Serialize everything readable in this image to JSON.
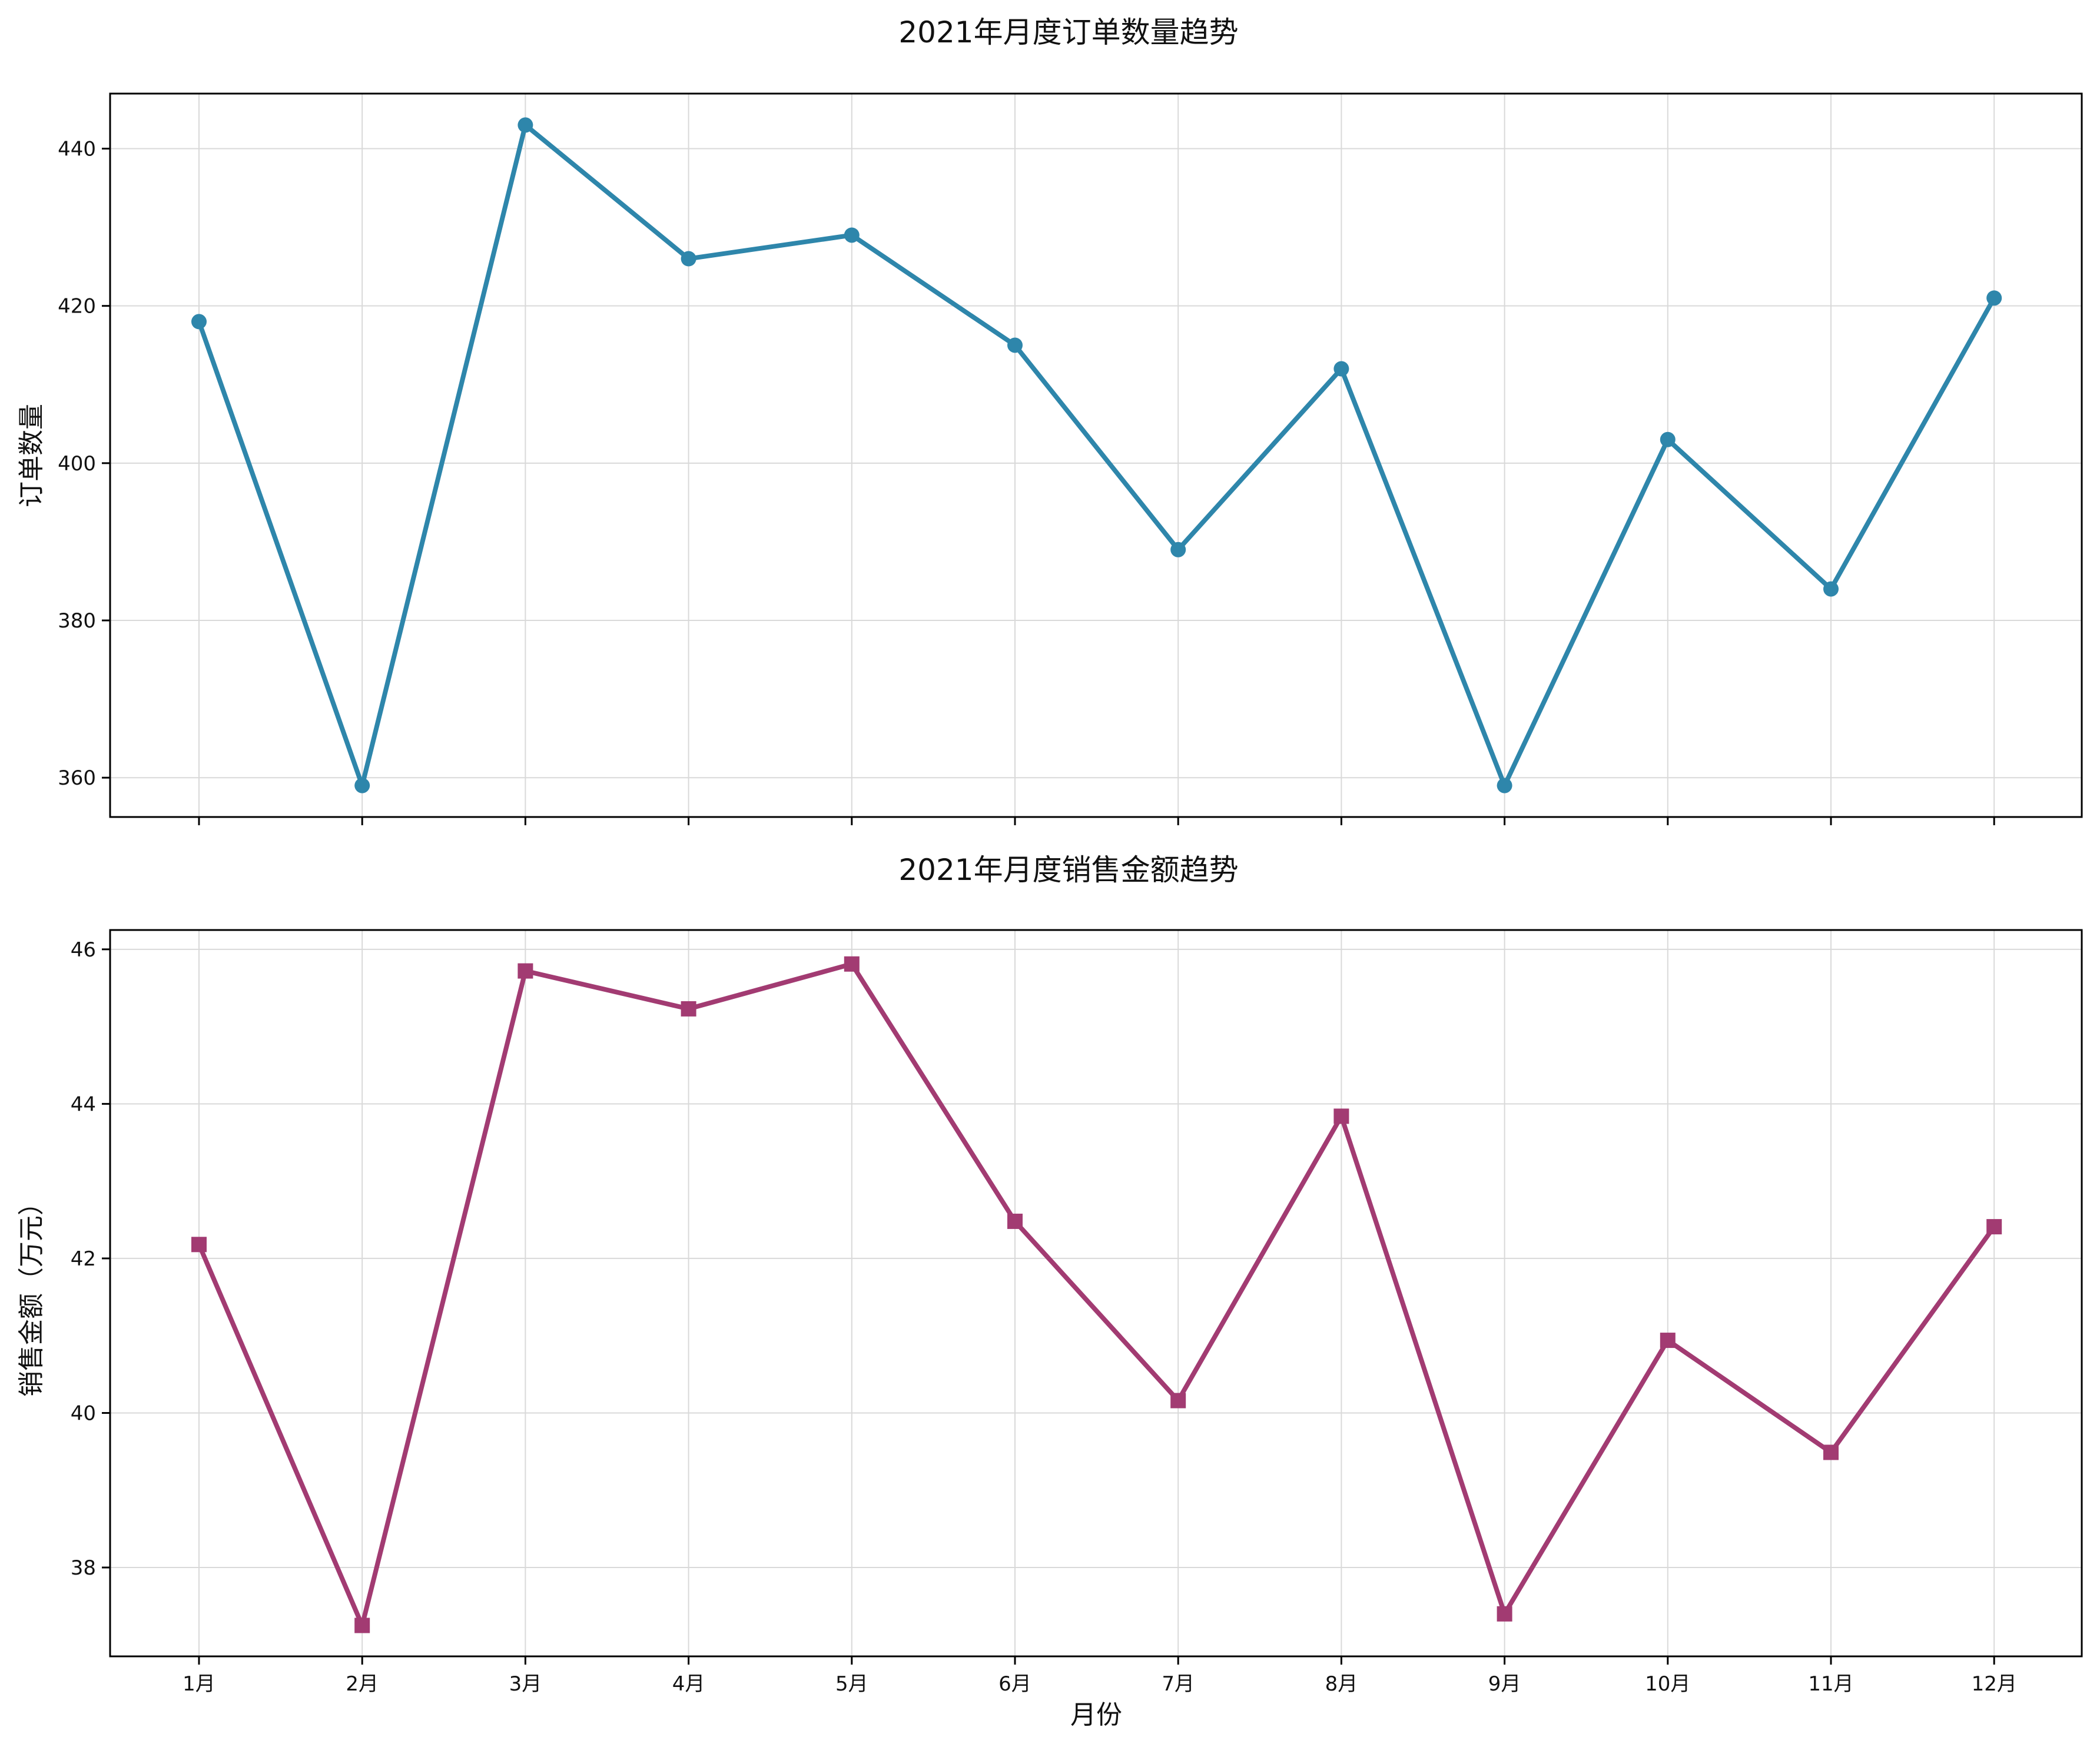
{
  "chart_data": [
    {
      "type": "line",
      "title": "2021年月度订单数量趋势",
      "xlabel": "",
      "ylabel": "订单数量",
      "categories": [
        "1月",
        "2月",
        "3月",
        "4月",
        "5月",
        "6月",
        "7月",
        "8月",
        "9月",
        "10月",
        "11月",
        "12月"
      ],
      "series": [
        {
          "values": [
            418,
            359,
            443,
            426,
            429,
            415,
            389,
            412,
            359,
            403,
            384,
            421
          ],
          "color": "#2E86AB",
          "marker": "circle"
        }
      ],
      "ylim": [
        355,
        447
      ],
      "yticks": [
        360,
        380,
        400,
        420,
        440
      ],
      "show_x_tick_labels": false,
      "grid": true
    },
    {
      "type": "line",
      "title": "2021年月度销售金额趋势",
      "xlabel": "月份",
      "ylabel": "销售金额（万元）",
      "categories": [
        "1月",
        "2月",
        "3月",
        "4月",
        "5月",
        "6月",
        "7月",
        "8月",
        "9月",
        "10月",
        "11月",
        "12月"
      ],
      "series": [
        {
          "values": [
            42.18,
            37.25,
            45.72,
            45.23,
            45.81,
            42.48,
            40.16,
            43.84,
            37.4,
            40.94,
            39.49,
            42.41
          ],
          "color": "#A23B72",
          "marker": "square"
        }
      ],
      "ylim": [
        36.85,
        46.25
      ],
      "yticks": [
        38,
        40,
        42,
        44,
        46
      ],
      "show_x_tick_labels": true,
      "grid": true
    }
  ]
}
